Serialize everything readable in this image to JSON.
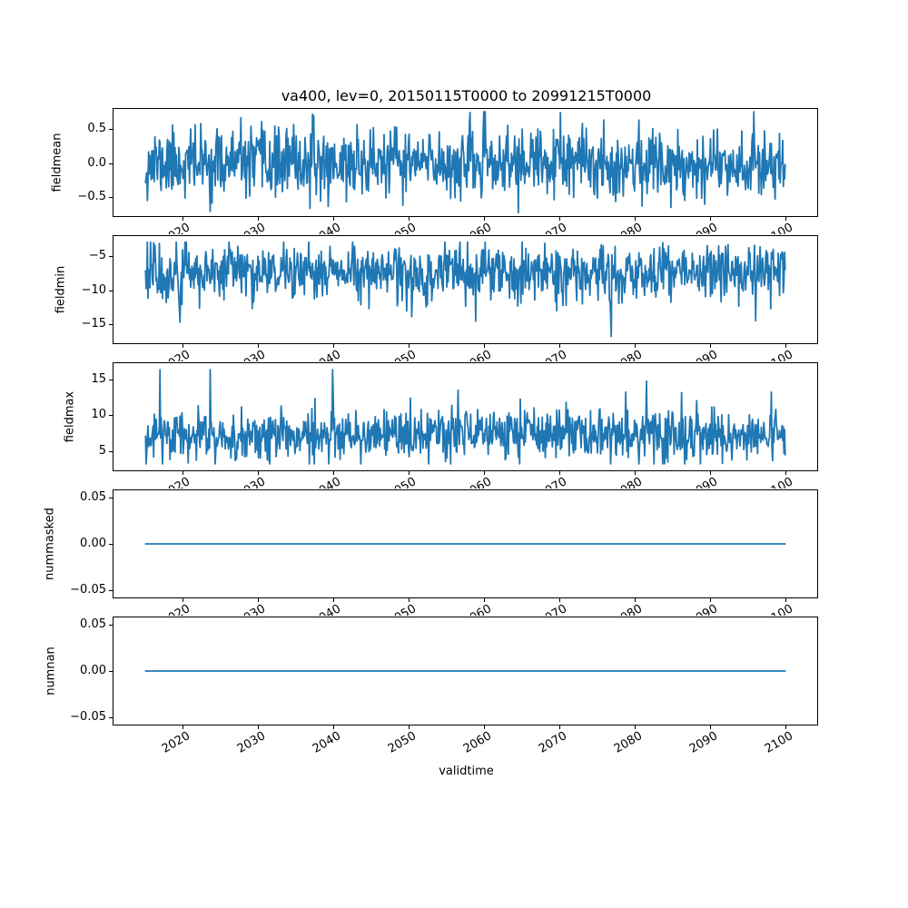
{
  "figure": {
    "background": "#ffffff"
  },
  "chart_data": {
    "type": "line",
    "title": "va400, lev=0, 20150115T0000 to 20991215T0000",
    "xlabel": "validtime",
    "line_color": "#1f77b4",
    "grid": false,
    "legend": false,
    "x": {
      "start": 2015.04,
      "end": 2099.96,
      "n": 1020,
      "description": "monthly timestamps 2015-01-15 to 2099-12-15"
    },
    "xlim": [
      2010.79,
      2104.21
    ],
    "xticks": [
      2020,
      2030,
      2040,
      2050,
      2060,
      2070,
      2080,
      2090,
      2100
    ],
    "xtick_labels": [
      "2020",
      "2030",
      "2040",
      "2050",
      "2060",
      "2070",
      "2080",
      "2090",
      "2100"
    ],
    "subplots": [
      {
        "ylabel": "fieldmean",
        "ylim": [
          -0.78,
          0.8
        ],
        "ytick_values": [
          0.5,
          0.0,
          -0.5
        ],
        "ytick_labels": [
          "0.5",
          "0.0",
          "−0.5"
        ],
        "series": {
          "kind": "noise",
          "seed": 11,
          "mean": 0.0,
          "std": 0.25,
          "clip_min": -0.73,
          "clip_max": 0.76
        }
      },
      {
        "ylabel": "fieldmin",
        "ylim": [
          -17.8,
          -2.0
        ],
        "ytick_values": [
          -5,
          -10,
          -15
        ],
        "ytick_labels": [
          "−5",
          "−10",
          "−15"
        ],
        "series": {
          "kind": "noise",
          "seed": 22,
          "mean": -7.3,
          "std": 2.1,
          "clip_min": -17.0,
          "clip_max": -2.9,
          "spike_prob": 0.02,
          "spike_lo": 2,
          "spike_hi": 7,
          "spike_dir": -1
        }
      },
      {
        "ylabel": "fieldmax",
        "ylim": [
          2.3,
          17.3
        ],
        "ytick_values": [
          15,
          10,
          5
        ],
        "ytick_labels": [
          "15",
          "10",
          "5"
        ],
        "series": {
          "kind": "noise",
          "seed": 33,
          "mean": 7.2,
          "std": 1.8,
          "clip_min": 3.2,
          "clip_max": 16.4,
          "spike_prob": 0.02,
          "spike_lo": 2,
          "spike_hi": 8,
          "spike_dir": 1
        }
      },
      {
        "ylabel": "nummasked",
        "ylim": [
          -0.0575,
          0.0575
        ],
        "ytick_values": [
          0.05,
          0.0,
          -0.05
        ],
        "ytick_labels": [
          "0.05",
          "0.00",
          "−0.05"
        ],
        "series": {
          "kind": "constant",
          "value": 0
        }
      },
      {
        "ylabel": "numnan",
        "ylim": [
          -0.0575,
          0.0575
        ],
        "ytick_values": [
          0.05,
          0.0,
          -0.05
        ],
        "ytick_labels": [
          "0.05",
          "0.00",
          "−0.05"
        ],
        "series": {
          "kind": "constant",
          "value": 0
        }
      }
    ]
  }
}
